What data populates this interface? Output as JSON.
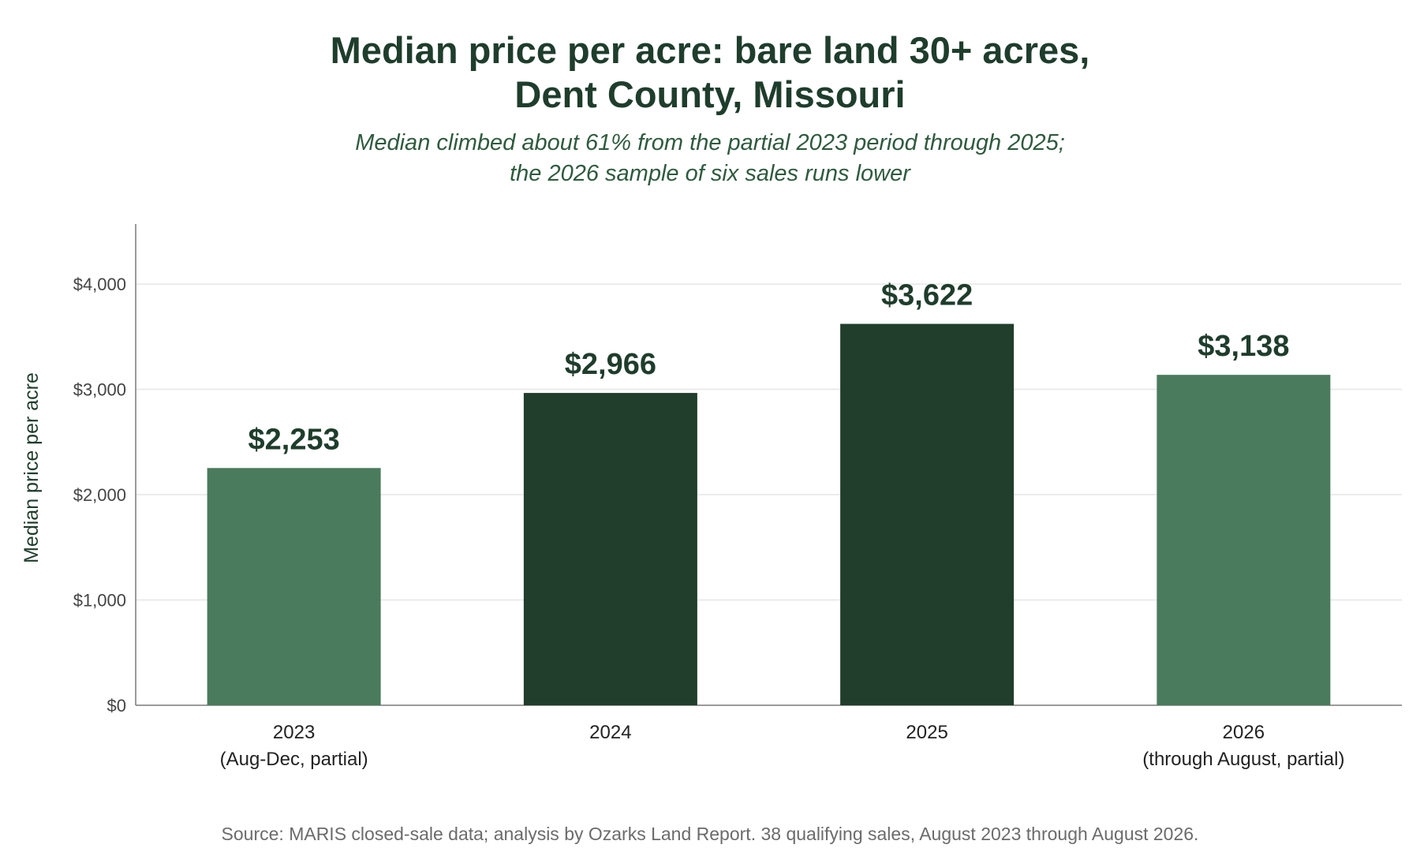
{
  "chart_data": {
    "type": "bar",
    "title_lines": [
      "Median price per acre: bare land 30+ acres,",
      "Dent County, Missouri"
    ],
    "subtitle_lines": [
      "Median climbed about 61% from the partial 2023 period through 2025;",
      "the 2026 sample of six sales runs lower"
    ],
    "ylabel": "Median price per acre",
    "xlabel": "",
    "ylim": [
      0,
      4570
    ],
    "yticks": [
      {
        "value": 0,
        "label": "$0"
      },
      {
        "value": 1000,
        "label": "$1,000"
      },
      {
        "value": 2000,
        "label": "$2,000"
      },
      {
        "value": 3000,
        "label": "$3,000"
      },
      {
        "value": 4000,
        "label": "$4,000"
      }
    ],
    "grid": true,
    "categories": [
      {
        "line1": "2023",
        "line2": "(Aug-Dec, partial)"
      },
      {
        "line1": "2024",
        "line2": ""
      },
      {
        "line1": "2025",
        "line2": ""
      },
      {
        "line1": "2026",
        "line2": "(through August, partial)"
      }
    ],
    "values": [
      2253,
      2966,
      3622,
      3138
    ],
    "value_labels": [
      "$2,253",
      "$2,966",
      "$3,622",
      "$3,138"
    ],
    "partial": [
      true,
      false,
      false,
      true
    ],
    "colors": {
      "full_year": "#213d2c",
      "partial_year": "#4a7b5c",
      "value_label": "#1f3d2c",
      "axis": "#7a7a7a",
      "grid": "#e6e6e6",
      "tick_text": "#444444",
      "ylabel": "#1f3d2c",
      "category_text": "#222222"
    }
  },
  "source": "Source: MARIS closed-sale data; analysis by Ozarks Land Report. 38 qualifying sales, August 2023 through August 2026."
}
